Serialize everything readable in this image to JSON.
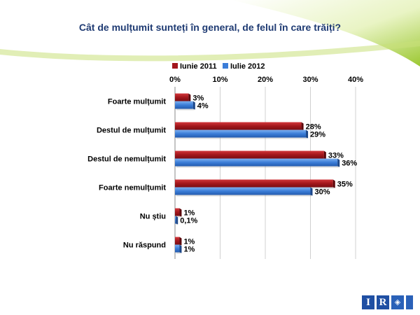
{
  "colors": {
    "series_2011": "#a3171c",
    "series_2012": "#3b7dd8",
    "accent_green": "#9cc832",
    "title": "#1f3b73"
  },
  "chart_data": {
    "type": "bar",
    "orientation": "horizontal",
    "title": "Cât de mulțumit sunteți în general, de felul în care trăiți?",
    "categories": [
      "Foarte mulțumit",
      "Destul de mulțumit",
      "Destul de nemulțumit",
      "Foarte nemulțumit",
      "Nu știu",
      "Nu răspund"
    ],
    "series": [
      {
        "name": "Iunie 2011",
        "values": [
          3,
          28,
          33,
          35,
          1,
          1
        ],
        "labels": [
          "3%",
          "28%",
          "33%",
          "35%",
          "1%",
          "1%"
        ]
      },
      {
        "name": "Iulie 2012",
        "values": [
          4,
          29,
          36,
          30,
          0.1,
          1
        ],
        "labels": [
          "4%",
          "29%",
          "36%",
          "30%",
          "0,1%",
          "1%"
        ]
      }
    ],
    "xlim": [
      0,
      40
    ],
    "xticks": [
      0,
      10,
      20,
      30,
      40
    ],
    "xtick_labels": [
      "0%",
      "10%",
      "20%",
      "30%",
      "40%"
    ],
    "legend_position": "top-left",
    "grid": true
  },
  "logo": {
    "text": "IR"
  }
}
